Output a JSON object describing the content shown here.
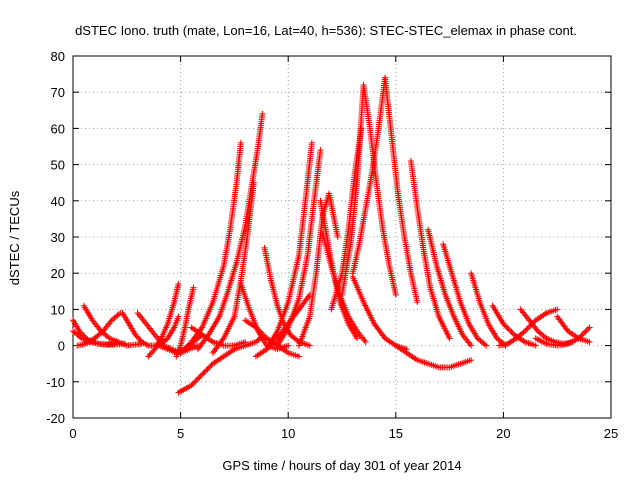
{
  "chart_data": {
    "type": "scatter",
    "title": "dSTEC Iono. truth (mate, Lon=16, Lat=40, h=536): STEC-STEC_elemax in phase cont.",
    "xlabel": "GPS time / hours of day 301 of year 2014",
    "ylabel": "dSTEC  / TECUs",
    "xlim": [
      0,
      25
    ],
    "ylim": [
      -20,
      80
    ],
    "xticks": [
      0,
      5,
      10,
      15,
      20,
      25
    ],
    "yticks": [
      -20,
      -10,
      0,
      10,
      20,
      30,
      40,
      50,
      60,
      70,
      80
    ],
    "grid": true,
    "marker": "+",
    "color": "#ff0000",
    "series": [
      {
        "x": [
          0.0,
          0.3,
          0.6,
          0.9,
          1.2,
          1.5,
          1.8,
          2.1
        ],
        "y": [
          7,
          4,
          2,
          1,
          0.5,
          0.3,
          0.5,
          1
        ]
      },
      {
        "x": [
          0.0,
          0.4,
          0.8,
          1.2,
          1.6,
          2.0,
          2.4
        ],
        "y": [
          4,
          2,
          1,
          0.5,
          0.2,
          0.3,
          0.5
        ]
      },
      {
        "x": [
          0.2,
          0.6,
          1.0,
          1.4,
          1.8,
          2.2
        ],
        "y": [
          0,
          0.5,
          2,
          4,
          7,
          9
        ]
      },
      {
        "x": [
          0.5,
          0.9,
          1.3,
          1.7,
          2.1,
          2.5,
          2.9,
          3.2
        ],
        "y": [
          11,
          7,
          4,
          2,
          1,
          0,
          0.3,
          0.5
        ]
      },
      {
        "x": [
          2.3,
          2.6,
          2.9,
          3.2,
          3.5,
          3.8,
          4.1,
          4.4,
          4.7,
          4.9
        ],
        "y": [
          9,
          6,
          3,
          1,
          0,
          0,
          0.5,
          2,
          5,
          8
        ]
      },
      {
        "x": [
          3.0,
          3.4,
          3.8,
          4.2,
          4.6,
          5.0,
          5.4,
          5.8
        ],
        "y": [
          9,
          6,
          3,
          0,
          -1,
          -2,
          -1,
          0
        ]
      },
      {
        "x": [
          4.0,
          4.4,
          4.8,
          5.2,
          5.6,
          6.0
        ],
        "y": [
          0,
          -1,
          -2,
          -1,
          1,
          3
        ]
      },
      {
        "x": [
          3.5,
          3.8,
          4.1,
          4.4,
          4.7,
          4.9
        ],
        "y": [
          -3,
          -1,
          2,
          6,
          12,
          17
        ]
      },
      {
        "x": [
          4.8,
          5.0,
          5.2,
          5.4,
          5.6
        ],
        "y": [
          -3,
          0,
          5,
          11,
          16
        ]
      },
      {
        "x": [
          4.9,
          5.5,
          6.0,
          6.5,
          7.0,
          7.5,
          8.0,
          8.5,
          8.7
        ],
        "y": [
          -13,
          -11,
          -8,
          -5,
          -3,
          -1,
          0,
          1,
          2
        ]
      },
      {
        "x": [
          5.0,
          5.5,
          6.0,
          6.5,
          7.0,
          7.3,
          7.6,
          7.8
        ],
        "y": [
          -2,
          1,
          5,
          12,
          22,
          32,
          45,
          56
        ]
      },
      {
        "x": [
          5.8,
          6.3,
          6.8,
          7.2,
          7.6,
          8.0,
          8.3,
          8.6,
          8.8
        ],
        "y": [
          -1,
          3,
          8,
          15,
          23,
          33,
          44,
          55,
          64
        ]
      },
      {
        "x": [
          6.5,
          7.0,
          7.5,
          7.8,
          8.1,
          8.4
        ],
        "y": [
          -2,
          2,
          8,
          18,
          30,
          45
        ]
      },
      {
        "x": [
          5.5,
          6.0,
          6.5,
          7.0,
          7.5,
          8.0
        ],
        "y": [
          5,
          3,
          1,
          0,
          0,
          1
        ]
      },
      {
        "x": [
          7.8,
          8.2,
          8.6,
          9.0,
          9.5,
          10.0
        ],
        "y": [
          17,
          10,
          4,
          0,
          -1,
          0
        ]
      },
      {
        "x": [
          8.9,
          9.2,
          9.5,
          9.8,
          10.1,
          10.5,
          11.0
        ],
        "y": [
          27,
          18,
          11,
          6,
          3,
          1,
          0
        ]
      },
      {
        "x": [
          8.5,
          9.0,
          9.5,
          10.0,
          10.5,
          11.0
        ],
        "y": [
          -3,
          -1,
          2,
          6,
          10,
          14
        ]
      },
      {
        "x": [
          9.0,
          9.5,
          10.0,
          10.5,
          10.8,
          11.1
        ],
        "y": [
          -1,
          4,
          12,
          25,
          40,
          56
        ]
      },
      {
        "x": [
          9.5,
          10.0,
          10.5,
          10.9,
          11.2,
          11.5
        ],
        "y": [
          0,
          5,
          13,
          25,
          40,
          54
        ]
      },
      {
        "x": [
          8.0,
          8.5,
          9.0,
          9.5,
          10.0,
          10.5
        ],
        "y": [
          7,
          5,
          2,
          0,
          -2,
          -3
        ]
      },
      {
        "x": [
          10.5,
          11.0,
          11.3,
          11.6,
          11.9,
          12.3
        ],
        "y": [
          0,
          8,
          20,
          36,
          42,
          30
        ]
      },
      {
        "x": [
          11.5,
          11.8,
          12.1,
          12.4,
          12.8,
          13.2
        ],
        "y": [
          40,
          30,
          20,
          12,
          6,
          2
        ]
      },
      {
        "x": [
          11.6,
          12.0,
          12.4,
          12.8,
          13.2,
          13.6
        ],
        "y": [
          31,
          22,
          14,
          8,
          4,
          1
        ]
      },
      {
        "x": [
          12.0,
          12.5,
          12.8,
          13.1,
          13.4
        ],
        "y": [
          10,
          20,
          32,
          48,
          60
        ]
      },
      {
        "x": [
          12.5,
          12.9,
          13.2,
          13.5
        ],
        "y": [
          14,
          28,
          45,
          72
        ]
      },
      {
        "x": [
          13.5,
          13.8,
          14.1,
          14.4,
          14.7,
          15.0
        ],
        "y": [
          72,
          60,
          45,
          32,
          22,
          14
        ]
      },
      {
        "x": [
          13.0,
          13.3,
          13.6,
          13.9,
          14.2,
          14.5
        ],
        "y": [
          20,
          28,
          38,
          48,
          60,
          74
        ]
      },
      {
        "x": [
          14.5,
          14.8,
          15.1,
          15.4,
          15.7,
          16.0
        ],
        "y": [
          74,
          58,
          42,
          30,
          20,
          12
        ]
      },
      {
        "x": [
          15.7,
          16.0,
          16.3,
          16.6,
          17.0,
          17.5
        ],
        "y": [
          51,
          38,
          26,
          16,
          8,
          2
        ]
      },
      {
        "x": [
          16.5,
          16.9,
          17.3,
          17.7,
          18.1,
          18.5
        ],
        "y": [
          32,
          22,
          14,
          8,
          3,
          0
        ]
      },
      {
        "x": [
          17.2,
          17.6,
          18.0,
          18.4,
          18.8,
          19.2
        ],
        "y": [
          28,
          20,
          12,
          6,
          2,
          0
        ]
      },
      {
        "x": [
          18.5,
          18.9,
          19.3,
          19.7,
          20.1
        ],
        "y": [
          20,
          12,
          6,
          2,
          0
        ]
      },
      {
        "x": [
          15.0,
          15.5,
          16.0,
          16.5,
          17.0,
          17.5,
          18.0,
          18.5
        ],
        "y": [
          0,
          -2,
          -4,
          -5,
          -6,
          -6,
          -5,
          -4
        ]
      },
      {
        "x": [
          13.0,
          13.5,
          14.0,
          14.5,
          15.0,
          15.5
        ],
        "y": [
          19,
          12,
          6,
          2,
          0,
          -1
        ]
      },
      {
        "x": [
          19.5,
          20.0,
          20.5,
          21.0,
          21.5
        ],
        "y": [
          11,
          6,
          3,
          1,
          0
        ]
      },
      {
        "x": [
          19.8,
          20.2,
          20.6,
          21.0,
          21.5,
          22.0,
          22.5
        ],
        "y": [
          0,
          0.5,
          2,
          4,
          7,
          9,
          10
        ]
      },
      {
        "x": [
          20.8,
          21.2,
          21.6,
          22.0,
          22.4,
          22.8,
          23.2
        ],
        "y": [
          10,
          7,
          4,
          2,
          1,
          0.5,
          1
        ]
      },
      {
        "x": [
          21.5,
          22.0,
          22.5,
          23.0,
          23.5,
          24.0
        ],
        "y": [
          2,
          0.5,
          0,
          0.5,
          2,
          5
        ]
      },
      {
        "x": [
          22.5,
          23.0,
          23.5,
          24.0
        ],
        "y": [
          8,
          4,
          2,
          1
        ]
      }
    ]
  }
}
